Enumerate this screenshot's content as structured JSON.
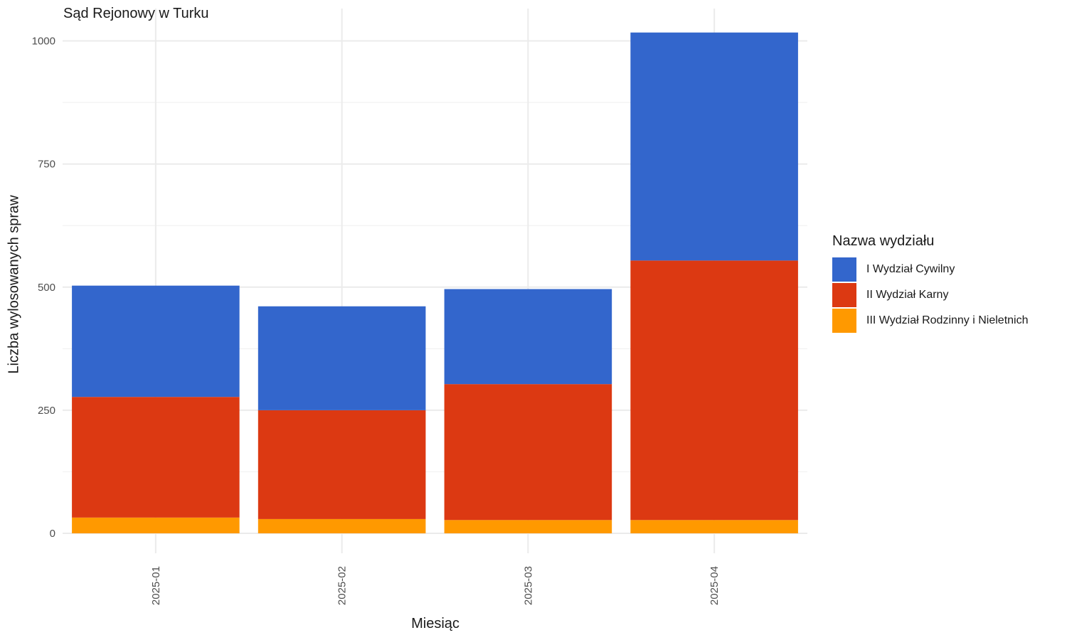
{
  "chart_data": {
    "type": "bar",
    "stacked": true,
    "title": "Sąd Rejonowy w Turku",
    "xlabel": "Miesiąc",
    "ylabel": "Liczba wylosowanych spraw",
    "categories": [
      "2025-01",
      "2025-02",
      "2025-03",
      "2025-04"
    ],
    "ylim": [
      0,
      1050
    ],
    "yticks": [
      0,
      250,
      500,
      750,
      1000
    ],
    "grid": true,
    "legend_title": "Nazwa wydziału",
    "legend_position": "right",
    "series": [
      {
        "name": "III Wydział Rodzinny i Nieletnich",
        "color": "#ff9900",
        "values": [
          32,
          29,
          27,
          27
        ]
      },
      {
        "name": "II Wydział Karny",
        "color": "#dc3912",
        "values": [
          245,
          221,
          276,
          527
        ]
      },
      {
        "name": "I Wydział Cywilny",
        "color": "#3366cc",
        "values": [
          226,
          211,
          193,
          463
        ]
      }
    ]
  },
  "legend": {
    "title": "Nazwa wydziału",
    "items": [
      {
        "label": "I Wydział Cywilny",
        "color": "#3366cc"
      },
      {
        "label": "II Wydział Karny",
        "color": "#dc3912"
      },
      {
        "label": "III Wydział Rodzinny i Nieletnich",
        "color": "#ff9900"
      }
    ]
  }
}
